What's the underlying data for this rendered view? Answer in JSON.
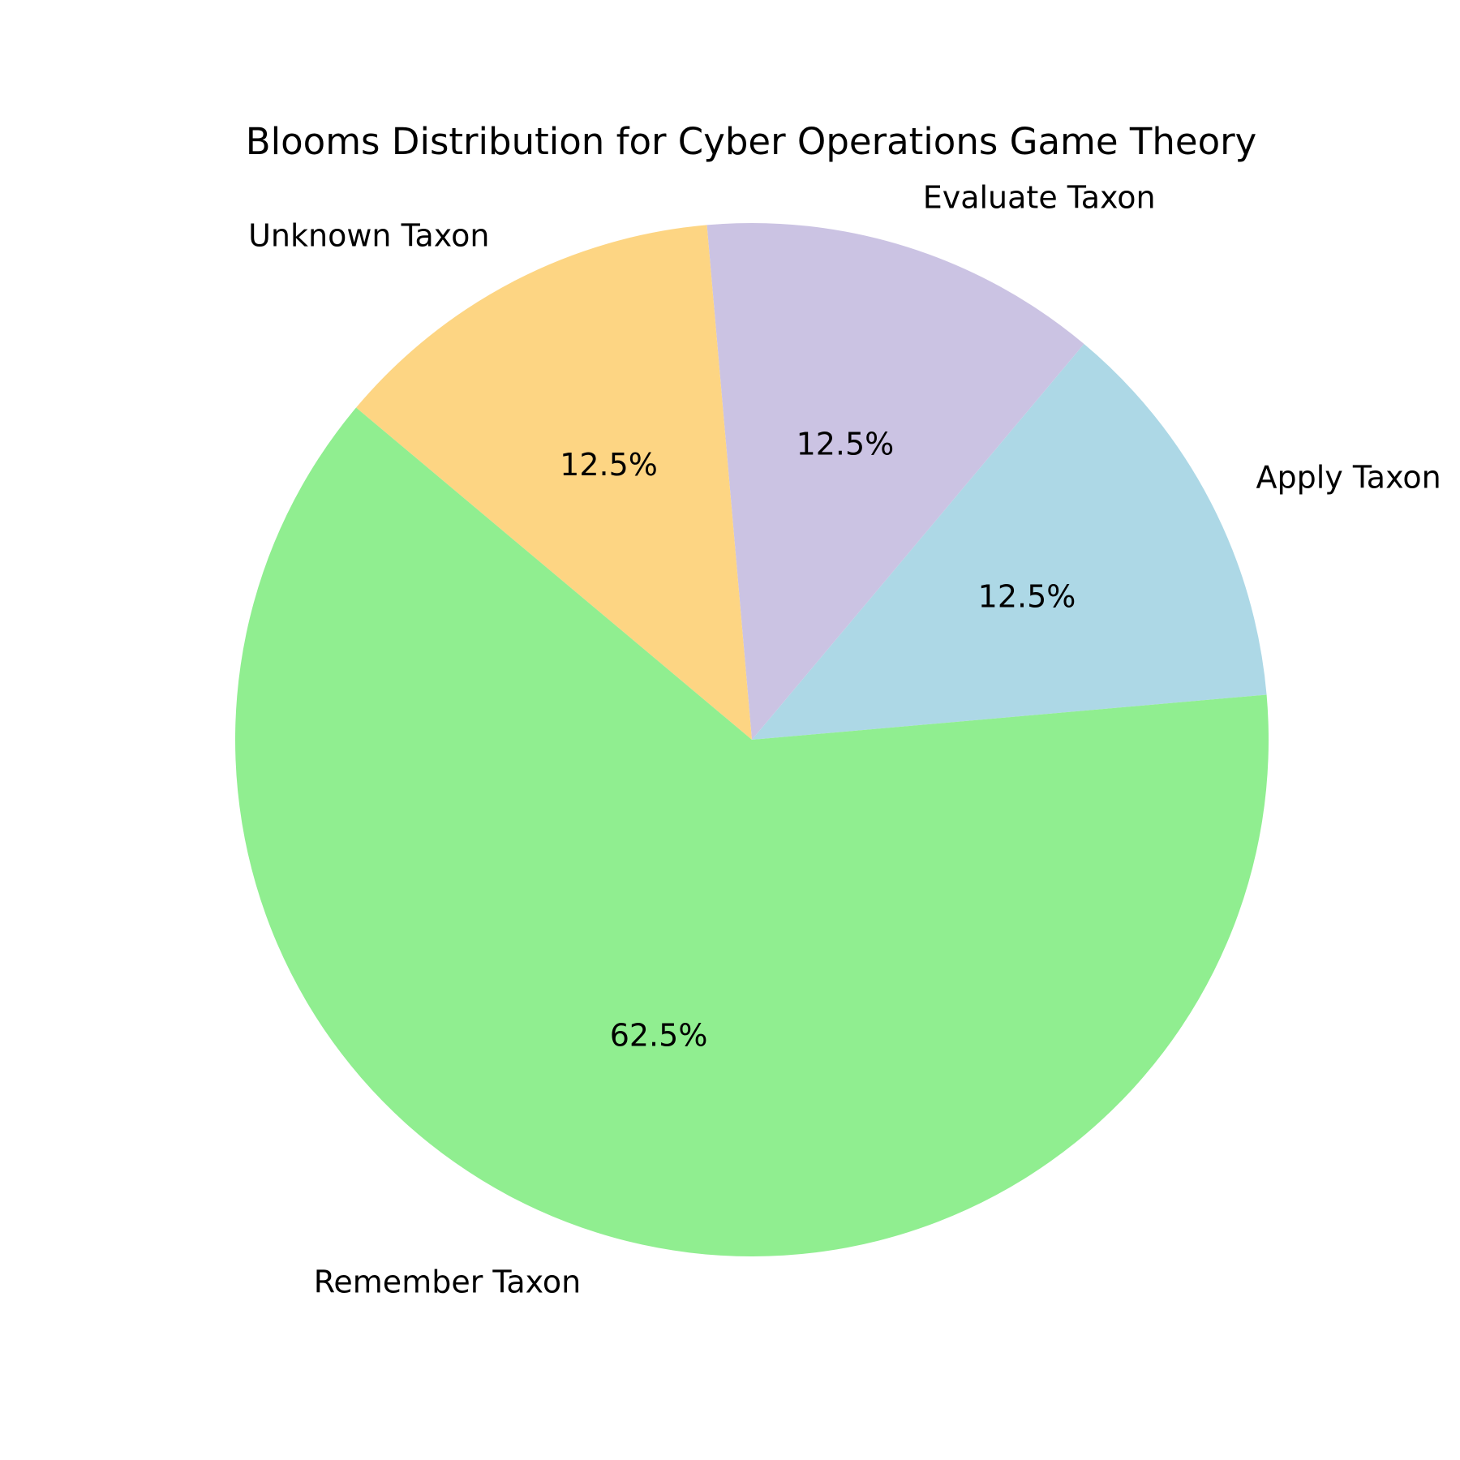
{
  "chart_data": {
    "type": "pie",
    "title": "Blooms Distribution for Cyber Operations Game Theory",
    "categories": [
      "Apply Taxon",
      "Evaluate Taxon",
      "Unknown Taxon",
      "Remember Taxon"
    ],
    "values": [
      12.5,
      12.5,
      12.5,
      62.5
    ],
    "percent_labels": [
      "12.5%",
      "12.5%",
      "12.5%",
      "62.5%"
    ],
    "colors": [
      "#add8e6",
      "#cbc3e3",
      "#fdd583",
      "#90ee90"
    ],
    "start_angle_deg": 5,
    "direction": "counterclockwise",
    "legend": "none"
  }
}
